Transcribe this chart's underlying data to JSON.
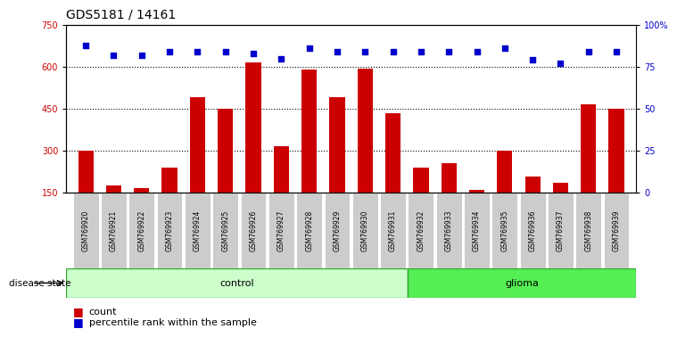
{
  "title": "GDS5181 / 14161",
  "samples": [
    "GSM769920",
    "GSM769921",
    "GSM769922",
    "GSM769923",
    "GSM769924",
    "GSM769925",
    "GSM769926",
    "GSM769927",
    "GSM769928",
    "GSM769929",
    "GSM769930",
    "GSM769931",
    "GSM769932",
    "GSM769933",
    "GSM769934",
    "GSM769935",
    "GSM769936",
    "GSM769937",
    "GSM769938",
    "GSM769939"
  ],
  "counts": [
    300,
    175,
    165,
    240,
    490,
    450,
    615,
    315,
    590,
    490,
    595,
    435,
    240,
    255,
    160,
    300,
    205,
    185,
    465,
    450
  ],
  "percentiles": [
    88,
    82,
    82,
    84,
    84,
    84,
    83,
    80,
    86,
    84,
    84,
    84,
    84,
    84,
    84,
    86,
    79,
    77,
    84,
    84
  ],
  "control_count": 12,
  "glioma_count": 8,
  "ylim_left": [
    150,
    750
  ],
  "ylim_right": [
    0,
    100
  ],
  "yticks_left": [
    150,
    300,
    450,
    600,
    750
  ],
  "yticks_right": [
    0,
    25,
    50,
    75,
    100
  ],
  "yticklabels_right": [
    "0",
    "25",
    "50",
    "75",
    "100%"
  ],
  "bar_color": "#cc0000",
  "dot_color": "#0000cc",
  "control_bg": "#ccffcc",
  "glioma_bg": "#55ee55",
  "grid_color": "black",
  "title_fontsize": 10,
  "tick_fontsize": 7,
  "label_fontsize": 5.5,
  "legend_count_label": "count",
  "legend_pct_label": "percentile rank within the sample"
}
